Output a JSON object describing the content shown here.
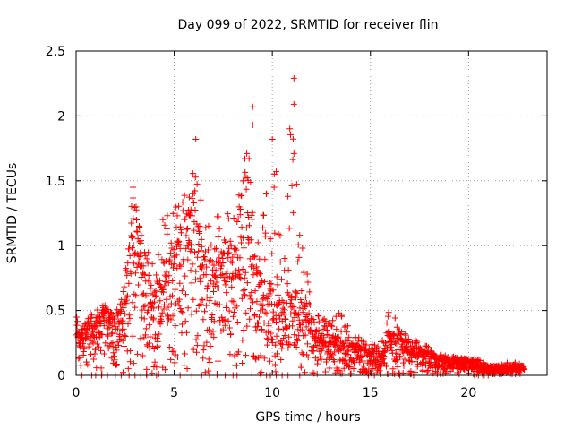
{
  "chart_data": {
    "type": "scatter",
    "title": "Day 099 of 2022, SRMTID for receiver flin",
    "xlabel": "GPS time / hours",
    "ylabel": "SRMTID / TECUs",
    "xlim": [
      0,
      24
    ],
    "ylim": [
      0,
      2.5
    ],
    "x_ticks": [
      0,
      5,
      10,
      15,
      20
    ],
    "x_tick_labels": [
      "0",
      "5",
      "10",
      "15",
      "20"
    ],
    "y_ticks": [
      0,
      0.5,
      1,
      1.5,
      2,
      2.5
    ],
    "y_tick_labels": [
      "0",
      "0.5",
      "1",
      "1.5",
      "2",
      "2.5"
    ],
    "grid": true,
    "marker": "+",
    "color": "#ff0000",
    "series": [
      {
        "name": "SRMTID",
        "note": "dense cloud of ~2000 plus-marker samples; representative envelope (hour, approx. median, approx. upper spread) listed",
        "envelope": [
          [
            0.0,
            0.25,
            0.45
          ],
          [
            0.5,
            0.28,
            0.45
          ],
          [
            1.0,
            0.3,
            0.5
          ],
          [
            1.5,
            0.38,
            0.55
          ],
          [
            2.0,
            0.3,
            0.45
          ],
          [
            2.5,
            0.5,
            0.8
          ],
          [
            2.9,
            1.0,
            1.45
          ],
          [
            3.5,
            0.65,
            1.0
          ],
          [
            4.0,
            0.45,
            0.9
          ],
          [
            4.5,
            0.65,
            1.3
          ],
          [
            5.0,
            0.8,
            1.3
          ],
          [
            5.5,
            0.85,
            1.4
          ],
          [
            6.0,
            0.95,
            1.8
          ],
          [
            6.5,
            0.75,
            1.2
          ],
          [
            7.0,
            0.7,
            1.2
          ],
          [
            7.5,
            0.75,
            1.3
          ],
          [
            8.0,
            0.7,
            1.2
          ],
          [
            8.5,
            0.8,
            1.65
          ],
          [
            9.0,
            0.75,
            2.05
          ],
          [
            9.5,
            0.5,
            1.2
          ],
          [
            10.0,
            0.5,
            1.8
          ],
          [
            10.5,
            0.4,
            0.95
          ],
          [
            11.0,
            0.5,
            2.28
          ],
          [
            11.5,
            0.45,
            1.05
          ],
          [
            12.0,
            0.3,
            0.6
          ],
          [
            12.5,
            0.22,
            0.45
          ],
          [
            13.0,
            0.22,
            0.4
          ],
          [
            13.5,
            0.2,
            0.55
          ],
          [
            14.0,
            0.18,
            0.35
          ],
          [
            14.5,
            0.15,
            0.3
          ],
          [
            15.0,
            0.14,
            0.25
          ],
          [
            15.5,
            0.12,
            0.25
          ],
          [
            16.0,
            0.25,
            0.6
          ],
          [
            16.5,
            0.2,
            0.35
          ],
          [
            17.0,
            0.18,
            0.3
          ],
          [
            17.5,
            0.15,
            0.25
          ],
          [
            18.0,
            0.13,
            0.22
          ],
          [
            18.5,
            0.1,
            0.18
          ],
          [
            19.0,
            0.09,
            0.15
          ],
          [
            19.5,
            0.09,
            0.14
          ],
          [
            20.0,
            0.09,
            0.13
          ],
          [
            20.5,
            0.07,
            0.12
          ],
          [
            21.0,
            0.05,
            0.08
          ],
          [
            21.5,
            0.05,
            0.08
          ],
          [
            22.0,
            0.05,
            0.1
          ],
          [
            22.5,
            0.06,
            0.1
          ],
          [
            22.8,
            0.05,
            0.08
          ]
        ],
        "outliers": [
          [
            11.1,
            2.29
          ],
          [
            11.1,
            2.09
          ],
          [
            9.0,
            2.07
          ],
          [
            9.0,
            1.93
          ],
          [
            6.1,
            1.82
          ],
          [
            10.0,
            1.82
          ],
          [
            11.1,
            1.71
          ],
          [
            10.2,
            1.57
          ],
          [
            8.6,
            1.67
          ],
          [
            2.9,
            1.45
          ]
        ],
        "zero_points": [
          0.3,
          0.8,
          1.0,
          1.3,
          1.6,
          2.0,
          2.3,
          2.7,
          3.0,
          3.3,
          3.6,
          4.1,
          5.3,
          5.5,
          5.9,
          6.4,
          6.8,
          7.2,
          7.6,
          8.0,
          8.2,
          9.7,
          9.9,
          10.2,
          10.5,
          10.8,
          11.4,
          14.9,
          15.2,
          16.5,
          17.2,
          20.3,
          20.5,
          20.8,
          21.0
        ]
      }
    ]
  }
}
